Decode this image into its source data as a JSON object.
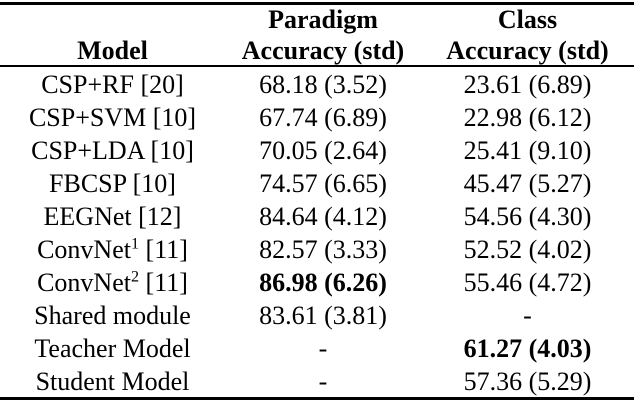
{
  "table": {
    "header": {
      "model": "Model",
      "paradigm_line1": "Paradigm",
      "class_line1": "Class",
      "accuracy_std": "Accuracy (std)"
    },
    "rows": [
      {
        "model": "CSP+RF [20]",
        "sup": "",
        "ref": "",
        "paradigm": "68.18 (3.52)",
        "class": "23.61 (6.89)"
      },
      {
        "model": "CSP+SVM [10]",
        "sup": "",
        "ref": "",
        "paradigm": "67.74 (6.89)",
        "class": "22.98 (6.12)"
      },
      {
        "model": "CSP+LDA [10]",
        "sup": "",
        "ref": "",
        "paradigm": "70.05 (2.64)",
        "class": "25.41 (9.10)"
      },
      {
        "model": "FBCSP [10]",
        "sup": "",
        "ref": "",
        "paradigm": "74.57 (6.65)",
        "class": "45.47 (5.27)"
      },
      {
        "model": "EEGNet [12]",
        "sup": "",
        "ref": "",
        "paradigm": "84.64 (4.12)",
        "class": "54.56 (4.30)"
      },
      {
        "model": "ConvNet",
        "sup": "1",
        "ref": " [11]",
        "paradigm": "82.57 (3.33)",
        "class": "52.52 (4.02)"
      },
      {
        "model": "ConvNet",
        "sup": "2",
        "ref": " [11]",
        "paradigm": "86.98 (6.26)",
        "class": "55.46 (4.72)",
        "paradigm_bold": true
      },
      {
        "model": "Shared module",
        "sup": "",
        "ref": "",
        "paradigm": "83.61 (3.81)",
        "class": "-"
      },
      {
        "model": "Teacher Model",
        "sup": "",
        "ref": "",
        "paradigm": "-",
        "class": "61.27 (4.03)",
        "class_bold": true
      },
      {
        "model": "Student Model",
        "sup": "",
        "ref": "",
        "paradigm": "-",
        "class": "57.36 (5.29)"
      }
    ],
    "text_color": "#000000",
    "background_color": "#ffffff"
  }
}
